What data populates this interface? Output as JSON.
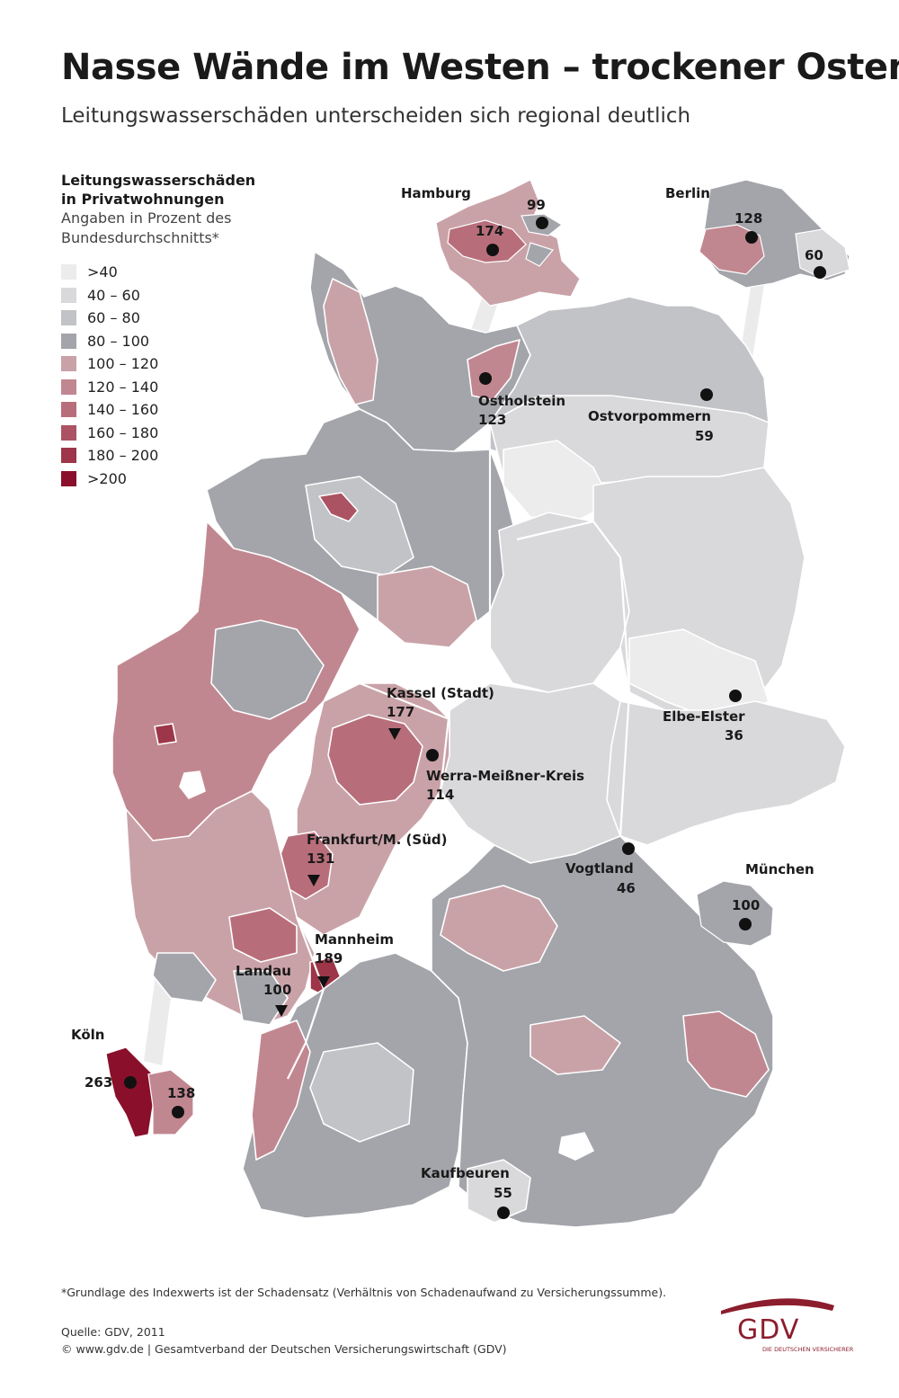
{
  "title": "Nasse Wände im Westen – trockener Osten",
  "subtitle": "Leitungswasserschäden unterscheiden sich regional deutlich",
  "legend": {
    "title_line1": "Leitungswasserschäden",
    "title_line2": "in Privatwohnungen",
    "subtitle_line1": "Angaben in Prozent des",
    "subtitle_line2": "Bundesdurchschnitts*",
    "classes": [
      {
        "label": ">40",
        "color": "#ececec"
      },
      {
        "label": "40 – 60",
        "color": "#d9d9db"
      },
      {
        "label": "60 – 80",
        "color": "#c2c3c7"
      },
      {
        "label": "80 – 100",
        "color": "#a3a5ab"
      },
      {
        "label": "100 – 120",
        "color": "#c9a2a8"
      },
      {
        "label": "120 – 140",
        "color": "#c18790"
      },
      {
        "label": "140 – 160",
        "color": "#b86e7a"
      },
      {
        "label": "160 – 180",
        "color": "#ab5362"
      },
      {
        "label": "180 – 200",
        "color": "#9c3648"
      },
      {
        "label": ">200",
        "color": "#8a0f2a"
      }
    ]
  },
  "regions": [
    {
      "name": "Hamburg",
      "value": "174"
    },
    {
      "name": "",
      "value": "99"
    },
    {
      "name": "Berlin",
      "value": "128"
    },
    {
      "name": "",
      "value": "60"
    },
    {
      "name": "Ostholstein",
      "value": "123"
    },
    {
      "name": "Ostvorpommern",
      "value": "59"
    },
    {
      "name": "Kassel (Stadt)",
      "value": "177"
    },
    {
      "name": "Werra-Meißner-Kreis",
      "value": "114"
    },
    {
      "name": "Elbe-Elster",
      "value": "36"
    },
    {
      "name": "Frankfurt/M. (Süd)",
      "value": "131"
    },
    {
      "name": "Vogtland",
      "value": "46"
    },
    {
      "name": "München",
      "value": "100"
    },
    {
      "name": "Mannheim",
      "value": "189"
    },
    {
      "name": "Landau",
      "value": "100"
    },
    {
      "name": "Köln",
      "value": "263"
    },
    {
      "name": "",
      "value": "138"
    },
    {
      "name": "Kaufbeuren",
      "value": "55"
    }
  ],
  "footnote": "*Grundlage des Indexwerts ist der Schadensatz (Verhältnis von Schadenaufwand zu Versicherungssumme).",
  "source_line1": "Quelle: GDV, 2011",
  "source_line2": "© www.gdv.de | Gesamtverband der Deutschen Versicherungswirtschaft (GDV)",
  "logo": {
    "text": "GDV",
    "subtext": "DIE DEUTSCHEN VERSICHERER",
    "color": "#8c1d2d"
  }
}
